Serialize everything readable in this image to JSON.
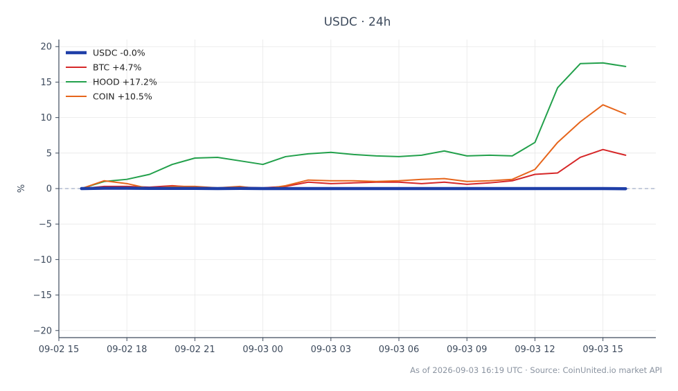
{
  "chart_data": {
    "type": "line",
    "title": "USDC · 24h",
    "xlabel": "",
    "ylabel": "%",
    "ylim": [
      -21,
      21
    ],
    "xlim": [
      "2026-09-02 15:00",
      "2026-09-03 17:20"
    ],
    "yticks": [
      20,
      15,
      10,
      5,
      0,
      -5,
      -10,
      -15,
      -20
    ],
    "yticklabels": [
      "20",
      "15",
      "10",
      "5",
      "0",
      "−5",
      "−10",
      "−15",
      "−20"
    ],
    "xticks": [
      "2026-09-02 15:00",
      "2026-09-02 18:00",
      "2026-09-02 21:00",
      "2026-09-03 00:00",
      "2026-09-03 03:00",
      "2026-09-03 06:00",
      "2026-09-03 09:00",
      "2026-09-03 12:00",
      "2026-09-03 15:00"
    ],
    "xticklabels": [
      "09-02 15",
      "09-02 18",
      "09-02 21",
      "09-03 00",
      "09-03 03",
      "09-03 06",
      "09-03 09",
      "09-03 12",
      "09-03 15"
    ],
    "x": [
      "2026-09-02 16:00",
      "2026-09-02 17:00",
      "2026-09-02 18:00",
      "2026-09-02 19:00",
      "2026-09-02 20:00",
      "2026-09-02 21:00",
      "2026-09-02 22:00",
      "2026-09-02 23:00",
      "2026-09-03 00:00",
      "2026-09-03 01:00",
      "2026-09-03 02:00",
      "2026-09-03 03:00",
      "2026-09-03 04:00",
      "2026-09-03 05:00",
      "2026-09-03 06:00",
      "2026-09-03 07:00",
      "2026-09-03 08:00",
      "2026-09-03 09:00",
      "2026-09-03 10:00",
      "2026-09-03 11:00",
      "2026-09-03 12:00",
      "2026-09-03 13:00",
      "2026-09-03 14:00",
      "2026-09-03 15:00",
      "2026-09-03 16:00"
    ],
    "reference_line": 0,
    "grid": true,
    "legend_position": "top-left",
    "series": [
      {
        "name": "USDC -0.0%",
        "color": "#1f3fa8",
        "emphasis": true,
        "values": [
          0.0,
          0.05,
          0.05,
          0.03,
          0.02,
          0.02,
          0.0,
          0.02,
          0.0,
          0.0,
          0.0,
          0.0,
          0.0,
          0.0,
          0.0,
          0.0,
          0.0,
          0.0,
          0.0,
          0.0,
          0.0,
          0.0,
          0.0,
          0.0,
          -0.02
        ]
      },
      {
        "name": "BTC +4.7%",
        "color": "#d62728",
        "values": [
          0.0,
          0.3,
          0.3,
          0.2,
          0.4,
          0.2,
          -0.1,
          0.2,
          0.1,
          0.3,
          0.9,
          0.7,
          0.8,
          0.9,
          0.9,
          0.7,
          0.9,
          0.6,
          0.8,
          1.1,
          2.0,
          2.2,
          4.4,
          5.5,
          4.7
        ]
      },
      {
        "name": "HOOD +17.2%",
        "color": "#22a04b",
        "values": [
          0.0,
          1.0,
          1.3,
          2.0,
          3.4,
          4.3,
          4.4,
          3.9,
          3.4,
          4.5,
          4.9,
          5.1,
          4.8,
          4.6,
          4.5,
          4.7,
          5.3,
          4.6,
          4.7,
          4.6,
          6.5,
          14.2,
          17.6,
          17.7,
          17.2
        ]
      },
      {
        "name": "COIN +10.5%",
        "color": "#e6651b",
        "values": [
          0.0,
          1.1,
          0.7,
          0.0,
          0.3,
          0.3,
          0.1,
          0.3,
          -0.1,
          0.4,
          1.2,
          1.1,
          1.1,
          1.0,
          1.1,
          1.3,
          1.4,
          1.0,
          1.1,
          1.3,
          2.7,
          6.5,
          9.4,
          11.8,
          10.5
        ]
      }
    ],
    "footer": "As of 2026-09-03 16:19 UTC · Source: CoinUnited.io market API"
  },
  "colors": {
    "axis": "#3d4a5c",
    "grid": "#e8e8e8",
    "zero_line": "#8a9ab8"
  }
}
